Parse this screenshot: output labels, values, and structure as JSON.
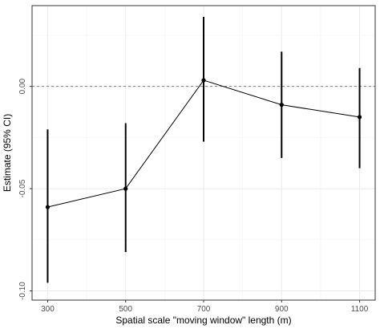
{
  "chart_data": {
    "type": "scatter",
    "title": "",
    "xlabel": "Spatial scale \"moving window\" length (m)",
    "ylabel": "Estimate (95% CI)",
    "x": [
      300,
      500,
      700,
      900,
      1100
    ],
    "x_tick_labels": [
      "300",
      "500",
      "700",
      "900",
      "1100"
    ],
    "y_ticks": [
      -0.1,
      -0.05,
      0.0
    ],
    "y_tick_labels": [
      "-0.10",
      "-0.05",
      "0.00"
    ],
    "series": [
      {
        "estimate": [
          -0.059,
          -0.05,
          0.003,
          -0.009,
          -0.015
        ],
        "ci_lower": [
          -0.096,
          -0.081,
          -0.027,
          -0.035,
          -0.04
        ],
        "ci_upper": [
          -0.021,
          -0.018,
          0.034,
          0.017,
          0.009
        ],
        "connected": true
      }
    ],
    "reference_line": {
      "y": 0.0,
      "style": "dashed"
    },
    "xlim": [
      260,
      1140
    ],
    "ylim": [
      -0.1045,
      0.0395
    ],
    "grid": true,
    "legend": "none",
    "colors": {
      "points": "#000000",
      "line": "#000000",
      "grid": "#ebebeb",
      "border": "#333333",
      "reference": "#7f7f7f"
    }
  }
}
